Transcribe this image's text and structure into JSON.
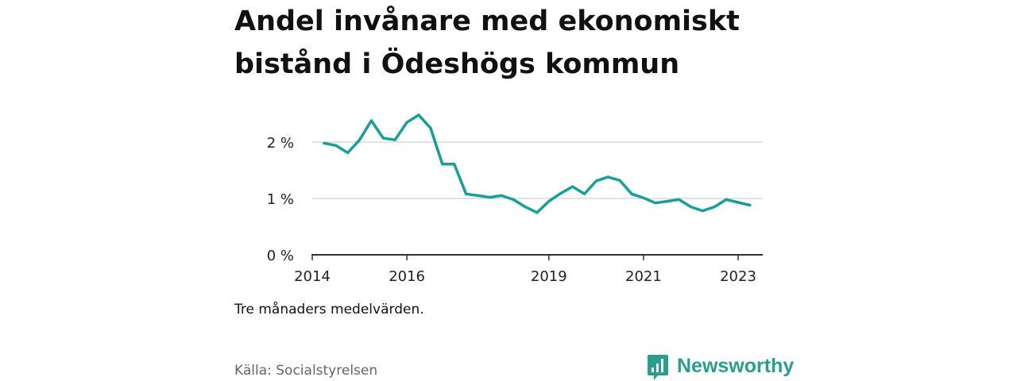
{
  "header": {
    "title": "Andel invånare med ekonomiskt bistånd i Ödeshögs kommun"
  },
  "chart_data": {
    "type": "line",
    "title": "Andel invånare med ekonomiskt bistånd i Ödeshögs kommun",
    "xlabel": "",
    "ylabel": "",
    "xlim": [
      "2014-01",
      "2023-06"
    ],
    "ylim": [
      0,
      2.6
    ],
    "grid": true,
    "y_ticks": [
      {
        "value": 0,
        "label": "0 %"
      },
      {
        "value": 1,
        "label": "1 %"
      },
      {
        "value": 2,
        "label": "2 %"
      }
    ],
    "x_ticks": [
      {
        "value": "2014-01",
        "label": "2014"
      },
      {
        "value": "2016-01",
        "label": "2016"
      },
      {
        "value": "2019-01",
        "label": "2019"
      },
      {
        "value": "2021-01",
        "label": "2021"
      },
      {
        "value": "2023-01",
        "label": "2023"
      }
    ],
    "series": [
      {
        "color": "#1a9e95",
        "x": [
          "2014-04",
          "2014-07",
          "2014-10",
          "2015-01",
          "2015-04",
          "2015-07",
          "2015-10",
          "2016-01",
          "2016-04",
          "2016-07",
          "2016-10",
          "2017-01",
          "2017-04",
          "2017-07",
          "2017-10",
          "2018-01",
          "2018-04",
          "2018-07",
          "2018-10",
          "2019-01",
          "2019-04",
          "2019-07",
          "2019-10",
          "2020-01",
          "2020-04",
          "2020-07",
          "2020-10",
          "2021-01",
          "2021-04",
          "2021-07",
          "2021-10",
          "2022-01",
          "2022-04",
          "2022-07",
          "2022-10",
          "2023-01",
          "2023-04"
        ],
        "values": [
          1.98,
          1.94,
          1.81,
          2.04,
          2.38,
          2.07,
          2.04,
          2.35,
          2.48,
          2.25,
          1.61,
          1.61,
          1.08,
          1.05,
          1.02,
          1.05,
          0.98,
          0.85,
          0.75,
          0.95,
          1.09,
          1.21,
          1.08,
          1.31,
          1.38,
          1.32,
          1.08,
          1.01,
          0.92,
          0.95,
          0.98,
          0.85,
          0.78,
          0.85,
          0.98,
          0.93,
          0.88
        ]
      }
    ],
    "note": "Tre månaders medelvärden.",
    "source": "Källa: Socialstyrelsen"
  },
  "footer": {
    "note": "Tre månaders medelvärden.",
    "source": "Källa: Socialstyrelsen",
    "brand": "Newsworthy",
    "brand_icon": "newsworthy-logo-icon",
    "brand_color": "#2a9d8f"
  },
  "colors": {
    "line": "#1a9e95",
    "grid": "#d9d9d9",
    "axis": "#333333"
  }
}
